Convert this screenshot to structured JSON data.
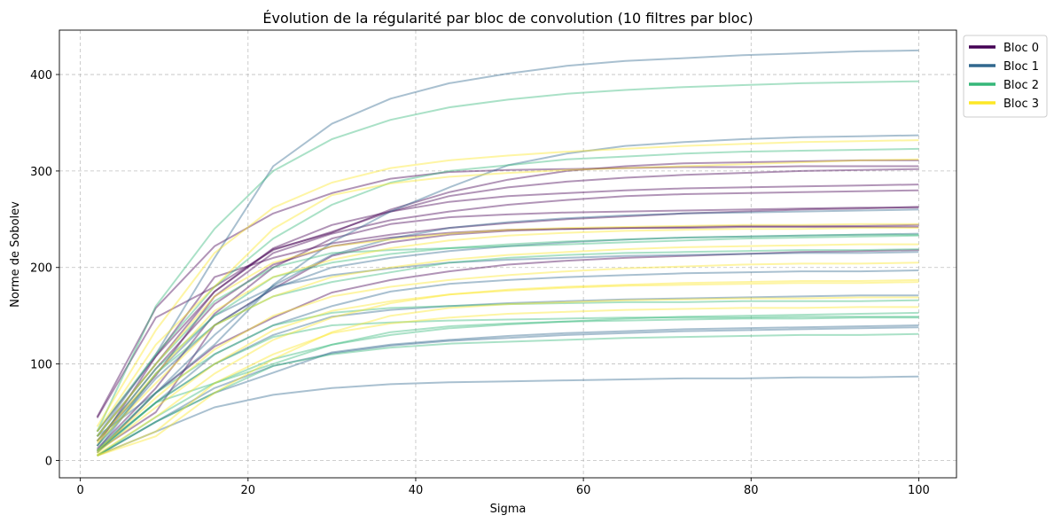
{
  "chart_data": {
    "type": "line",
    "title": "Évolution de la régularité par bloc de convolution (10 filtres par bloc)",
    "xlabel": "Sigma",
    "ylabel": "Norme de Sobolev",
    "xlim": [
      -2.5,
      104.5
    ],
    "ylim": [
      -18,
      446
    ],
    "xticks": [
      0,
      20,
      40,
      60,
      80,
      100
    ],
    "yticks": [
      0,
      100,
      200,
      300,
      400
    ],
    "grid": true,
    "legend_position": "outside right top",
    "x": [
      2,
      9,
      16,
      23,
      30,
      37,
      44,
      51,
      58,
      65,
      72,
      79,
      86,
      93,
      100
    ],
    "blocks": [
      {
        "name": "Bloc 0",
        "color": "#440154",
        "series": [
          {
            "values": [
              45,
              158,
              222,
              256,
              277,
              292,
              299,
              301,
              302,
              303,
              304,
              304,
              305,
              305,
              305
            ]
          },
          {
            "values": [
              44,
              148,
              180,
              218,
              237,
              258,
              274,
              283,
              289,
              293,
              296,
              298,
              300,
              301,
              302
            ]
          },
          {
            "values": [
              25,
              100,
              175,
              220,
              244,
              258,
              268,
              274,
              277,
              280,
              282,
              283,
              284,
              285,
              286
            ]
          },
          {
            "values": [
              20,
              88,
              170,
              215,
              235,
              249,
              258,
              265,
              270,
              274,
              276,
              277,
              278,
              279,
              280
            ]
          },
          {
            "values": [
              15,
              108,
              190,
              210,
              225,
              234,
              241,
              246,
              250,
              253,
              256,
              258,
              260,
              261,
              263
            ]
          },
          {
            "values": [
              12,
              75,
              152,
              200,
              230,
              245,
              252,
              255,
              257,
              258,
              259,
              260,
              261,
              262,
              262
            ]
          },
          {
            "values": [
              30,
              108,
              175,
              219,
              236,
              260,
              278,
              291,
              300,
              305,
              308,
              309,
              310,
              311,
              311
            ]
          },
          {
            "values": [
              10,
              50,
              140,
              178,
              212,
              226,
              234,
              238,
              240,
              241,
              242,
              243,
              243,
              243,
              244
            ]
          },
          {
            "values": [
              20,
              95,
              162,
              203,
              222,
              231,
              236,
              239,
              240,
              241,
              241,
              242,
              242,
              242,
              242
            ]
          },
          {
            "values": [
              8,
              70,
              118,
              148,
              174,
              187,
              196,
              203,
              207,
              210,
              212,
              214,
              216,
              217,
              218
            ]
          }
        ]
      },
      {
        "name": "Bloc 1",
        "color": "#31688e",
        "series": [
          {
            "values": [
              25,
              110,
              210,
              305,
              349,
              375,
              391,
              401,
              409,
              414,
              417,
              420,
              422,
              424,
              425
            ]
          },
          {
            "values": [
              25,
              70,
              120,
              182,
              226,
              258,
              283,
              306,
              318,
              326,
              330,
              333,
              335,
              336,
              337
            ]
          },
          {
            "values": [
              10,
              70,
              130,
              181,
              213,
              230,
              241,
              247,
              251,
              254,
              256,
              257,
              258,
              259,
              260
            ]
          },
          {
            "values": [
              15,
              85,
              140,
              178,
              200,
              210,
              217,
              222,
              226,
              229,
              231,
              232,
              233,
              234,
              235
            ]
          },
          {
            "values": [
              10,
              60,
              110,
              140,
              160,
              175,
              183,
              187,
              190,
              192,
              194,
              195,
              196,
              196,
              197
            ]
          },
          {
            "values": [
              10,
              60,
              100,
              130,
              149,
              156,
              160,
              163,
              165,
              167,
              168,
              169,
              170,
              171,
              171
            ]
          },
          {
            "values": [
              5,
              40,
              75,
              98,
              111,
              119,
              124,
              127,
              130,
              132,
              134,
              135,
              136,
              137,
              138
            ]
          },
          {
            "values": [
              5,
              40,
              70,
              91,
              112,
              120,
              125,
              129,
              132,
              134,
              136,
              137,
              138,
              139,
              140
            ]
          },
          {
            "values": [
              5,
              30,
              55,
              68,
              75,
              79,
              81,
              82,
              83,
              84,
              85,
              85,
              86,
              86,
              87
            ]
          },
          {
            "values": [
              10,
              90,
              150,
              180,
              192,
              199,
              205,
              208,
              210,
              212,
              213,
              214,
              215,
              215,
              216
            ]
          }
        ]
      },
      {
        "name": "Bloc 2",
        "color": "#35b779",
        "series": [
          {
            "values": [
              30,
              160,
              240,
              300,
              333,
              353,
              366,
              374,
              380,
              384,
              387,
              389,
              391,
              392,
              393
            ]
          },
          {
            "values": [
              30,
              110,
              180,
              230,
              265,
              288,
              300,
              306,
              312,
              315,
              318,
              320,
              321,
              322,
              323
            ]
          },
          {
            "values": [
              25,
              100,
              165,
              200,
              215,
              218,
              220,
              222,
              224,
              226,
              228,
              230,
              231,
              232,
              233
            ]
          },
          {
            "values": [
              20,
              95,
              150,
              190,
              205,
              214,
              220,
              224,
              227,
              229,
              231,
              232,
              233,
              234,
              234
            ]
          },
          {
            "values": [
              15,
              90,
              140,
              170,
              185,
              195,
              205,
              210,
              213,
              215,
              216,
              217,
              218,
              218,
              219
            ]
          },
          {
            "values": [
              10,
              70,
              110,
              140,
              153,
              158,
              160,
              162,
              163,
              164,
              164,
              165,
              165,
              165,
              166
            ]
          },
          {
            "values": [
              8,
              60,
              100,
              128,
              140,
              143,
              145,
              146,
              147,
              148,
              148,
              148,
              149,
              149,
              149
            ]
          },
          {
            "values": [
              5,
              45,
              80,
              105,
              120,
              130,
              137,
              141,
              144,
              147,
              149,
              150,
              151,
              152,
              153
            ]
          },
          {
            "values": [
              5,
              40,
              70,
              98,
              110,
              117,
              121,
              123,
              125,
              127,
              128,
              129,
              130,
              130,
              131
            ]
          },
          {
            "values": [
              10,
              60,
              80,
              100,
              120,
              133,
              139,
              142,
              144,
              145,
              146,
              147,
              147,
              148,
              148
            ]
          }
        ]
      },
      {
        "name": "Bloc 3",
        "color": "#fde725",
        "series": [
          {
            "values": [
              35,
              135,
              215,
              262,
              288,
              303,
              311,
              316,
              320,
              323,
              326,
              328,
              330,
              331,
              332
            ]
          },
          {
            "values": [
              30,
              120,
              180,
              240,
              275,
              287,
              294,
              298,
              301,
              303,
              305,
              307,
              309,
              311,
              312
            ]
          },
          {
            "values": [
              25,
              100,
              170,
              205,
              222,
              229,
              235,
              239,
              241,
              242,
              243,
              244,
              244,
              245,
              245
            ]
          },
          {
            "values": [
              20,
              90,
              155,
              190,
              208,
              220,
              228,
              233,
              236,
              238,
              239,
              240,
              240,
              241,
              241
            ]
          },
          {
            "values": [
              18,
              80,
              140,
              170,
              190,
              200,
              208,
              213,
              216,
              219,
              221,
              222,
              223,
              224,
              224
            ]
          },
          {
            "values": [
              10,
              65,
              115,
              150,
              170,
              180,
              187,
              192,
              196,
              199,
              201,
              203,
              204,
              204,
              205
            ]
          },
          {
            "values": [
              8,
              55,
              100,
              135,
              155,
              165,
              172,
              177,
              180,
              182,
              184,
              185,
              186,
              186,
              187
            ]
          },
          {
            "values": [
              6,
              45,
              90,
              125,
              148,
              163,
              172,
              176,
              179,
              181,
              182,
              183,
              184,
              184,
              185
            ]
          },
          {
            "values": [
              5,
              30,
              80,
              110,
              132,
              142,
              148,
              152,
              154,
              156,
              157,
              158,
              158,
              159,
              159
            ]
          },
          {
            "values": [
              5,
              25,
              70,
              105,
              133,
              150,
              158,
              162,
              164,
              166,
              167,
              168,
              168,
              169,
              169
            ]
          }
        ]
      }
    ]
  }
}
